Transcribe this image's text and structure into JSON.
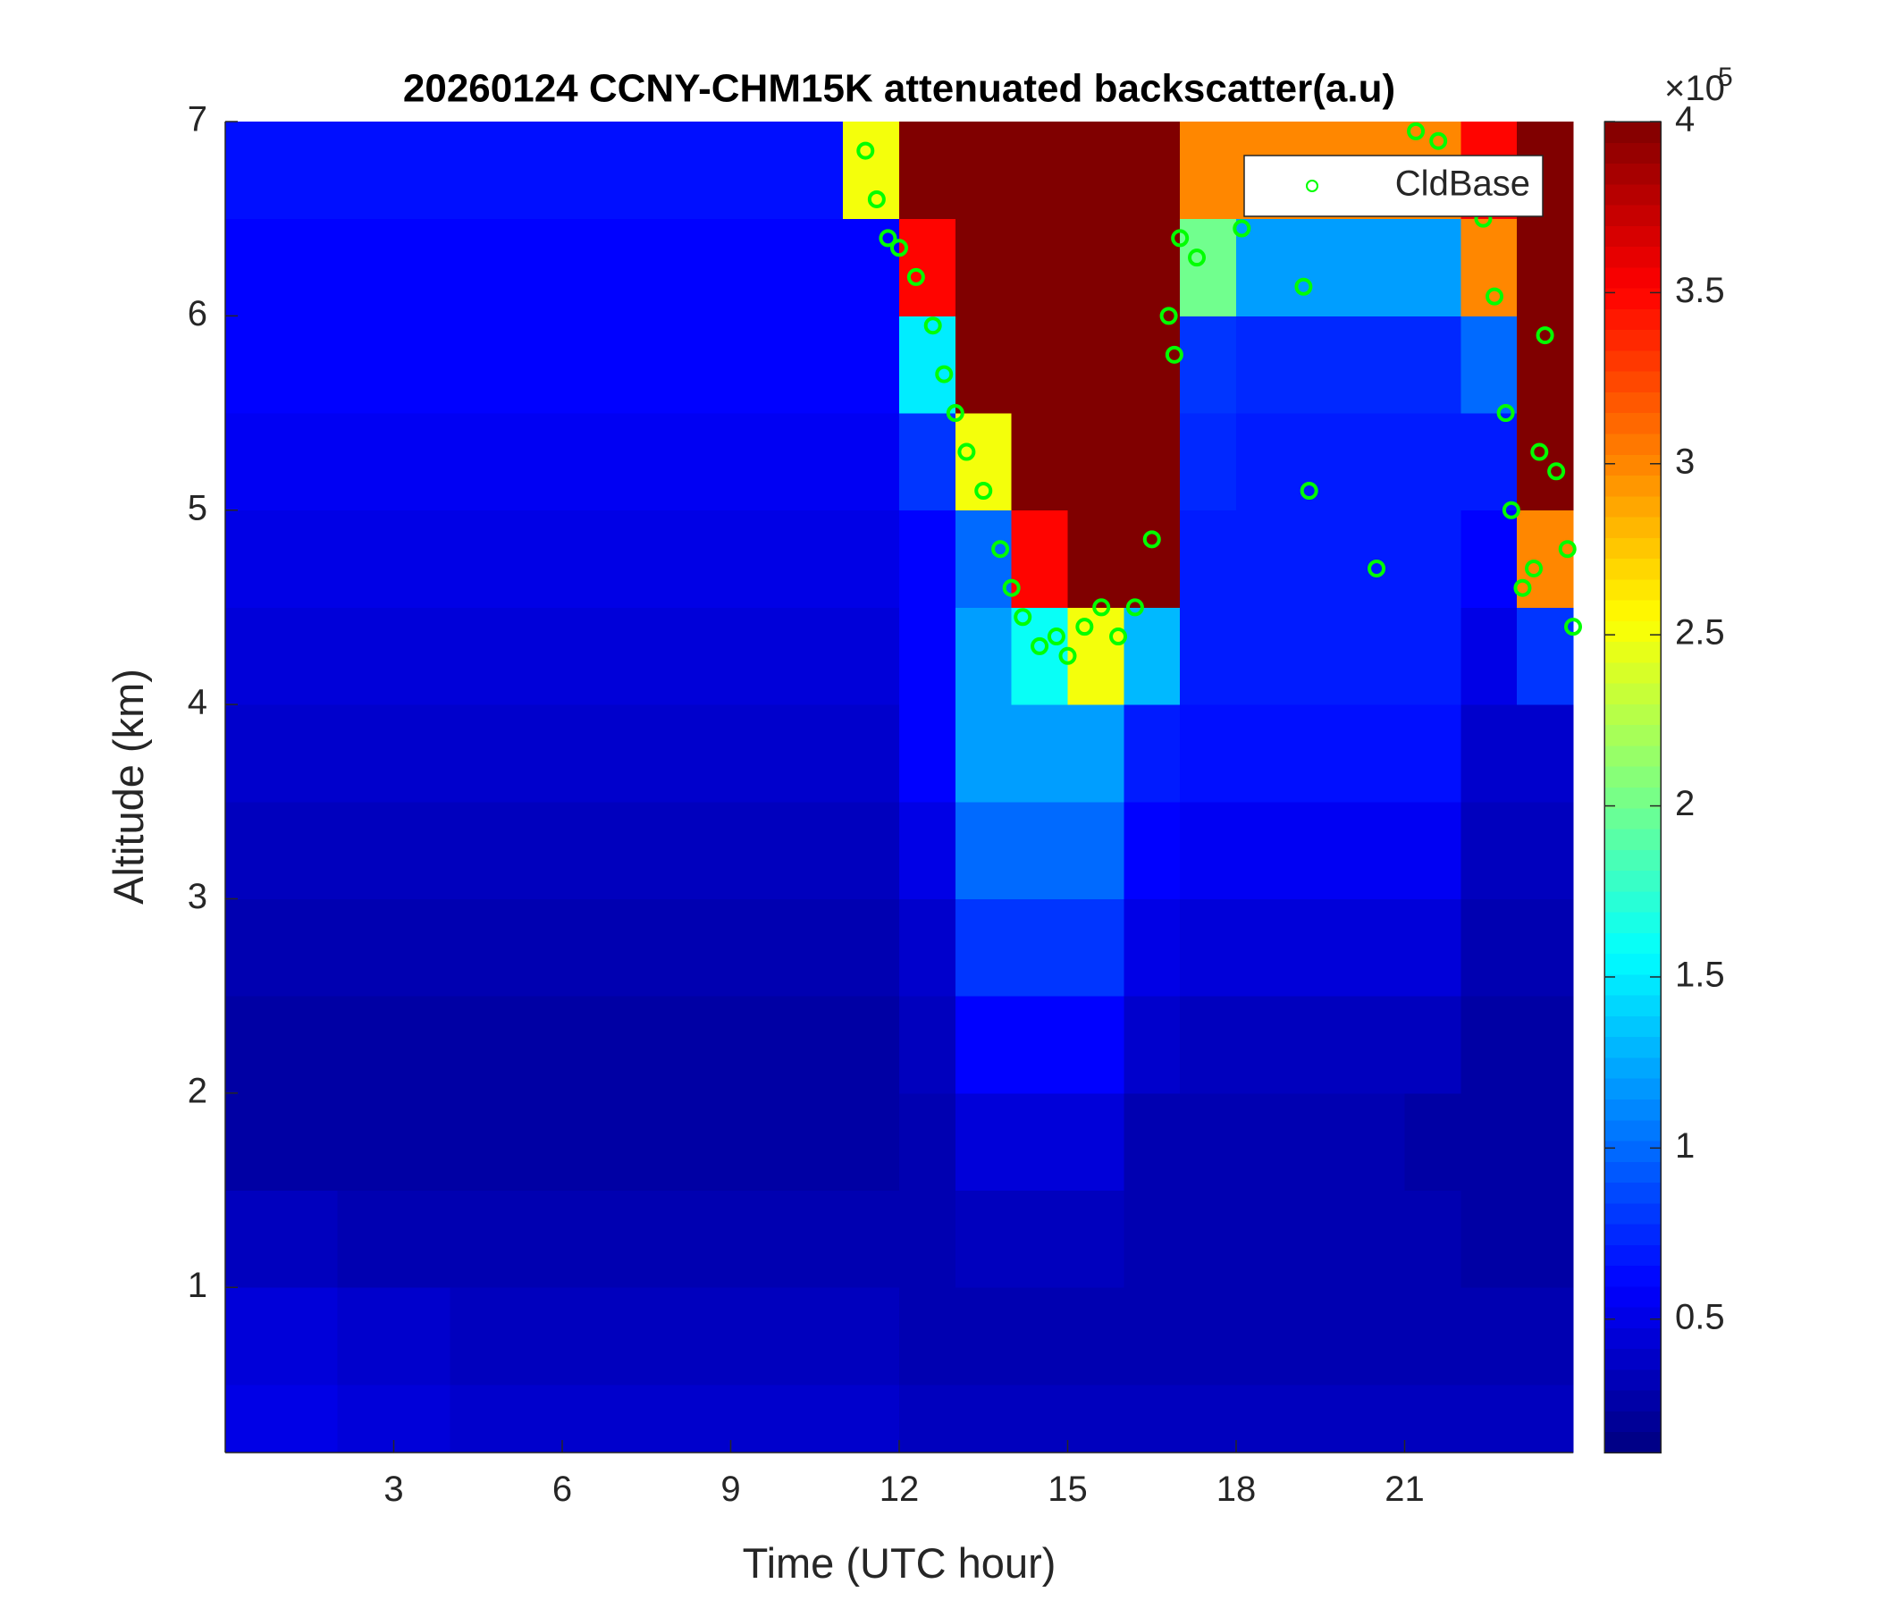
{
  "chart_data": {
    "type": "heatmap",
    "title": "20260124 CCNY-CHM15K attenuated backscatter(a.u)",
    "x_label": "Time (UTC hour)",
    "y_label": "Altitude (km)",
    "xlim": [
      0,
      24
    ],
    "ylim": [
      0.15,
      7
    ],
    "xticks": [
      3,
      6,
      9,
      12,
      15,
      18,
      21
    ],
    "yticks": [
      1,
      2,
      3,
      4,
      5,
      6,
      7
    ],
    "colormap": "jet",
    "clim": [
      0.11,
      4
    ],
    "cticks": [
      0.5,
      1,
      1.5,
      2,
      2.5,
      3,
      3.5,
      4
    ],
    "colorbar_multiplier": {
      "base": "×10",
      "exponent": "5"
    },
    "x_edges": [
      0,
      1,
      2,
      3,
      4,
      5,
      6,
      7,
      8,
      9,
      10,
      11,
      12,
      13,
      14,
      15,
      16,
      17,
      18,
      19,
      20,
      21,
      22,
      23,
      24
    ],
    "y_edges": [
      0.15,
      0.5,
      1,
      1.5,
      2,
      2.5,
      3,
      3.5,
      4,
      4.5,
      5,
      5.5,
      6,
      6.5,
      7
    ],
    "z": [
      [
        0.5,
        0.5,
        0.45,
        0.45,
        0.4,
        0.4,
        0.4,
        0.4,
        0.4,
        0.4,
        0.4,
        0.4,
        0.35,
        0.35,
        0.35,
        0.35,
        0.35,
        0.35,
        0.35,
        0.35,
        0.35,
        0.35,
        0.35,
        0.35
      ],
      [
        0.45,
        0.45,
        0.4,
        0.4,
        0.35,
        0.35,
        0.35,
        0.35,
        0.35,
        0.35,
        0.35,
        0.35,
        0.3,
        0.3,
        0.3,
        0.3,
        0.3,
        0.3,
        0.3,
        0.3,
        0.3,
        0.3,
        0.3,
        0.3
      ],
      [
        0.35,
        0.35,
        0.3,
        0.3,
        0.3,
        0.3,
        0.3,
        0.3,
        0.3,
        0.3,
        0.3,
        0.3,
        0.3,
        0.35,
        0.35,
        0.35,
        0.3,
        0.3,
        0.3,
        0.3,
        0.3,
        0.3,
        0.25,
        0.25
      ],
      [
        0.25,
        0.25,
        0.25,
        0.25,
        0.25,
        0.25,
        0.25,
        0.25,
        0.25,
        0.25,
        0.25,
        0.25,
        0.3,
        0.45,
        0.45,
        0.45,
        0.3,
        0.3,
        0.3,
        0.3,
        0.3,
        0.25,
        0.25,
        0.25
      ],
      [
        0.25,
        0.25,
        0.25,
        0.25,
        0.25,
        0.25,
        0.25,
        0.25,
        0.25,
        0.25,
        0.25,
        0.25,
        0.35,
        0.6,
        0.6,
        0.6,
        0.4,
        0.35,
        0.35,
        0.35,
        0.35,
        0.35,
        0.25,
        0.25
      ],
      [
        0.3,
        0.3,
        0.3,
        0.3,
        0.3,
        0.3,
        0.3,
        0.3,
        0.3,
        0.3,
        0.3,
        0.3,
        0.4,
        0.8,
        0.8,
        0.8,
        0.5,
        0.45,
        0.45,
        0.45,
        0.45,
        0.45,
        0.3,
        0.3
      ],
      [
        0.35,
        0.35,
        0.35,
        0.35,
        0.35,
        0.35,
        0.35,
        0.35,
        0.35,
        0.35,
        0.35,
        0.35,
        0.5,
        1,
        1,
        1,
        0.6,
        0.55,
        0.55,
        0.55,
        0.55,
        0.55,
        0.35,
        0.35
      ],
      [
        0.4,
        0.4,
        0.4,
        0.4,
        0.4,
        0.4,
        0.4,
        0.4,
        0.4,
        0.4,
        0.4,
        0.4,
        0.6,
        1.2,
        1.2,
        1.2,
        0.7,
        0.65,
        0.65,
        0.65,
        0.65,
        0.65,
        0.4,
        0.4
      ],
      [
        0.45,
        0.45,
        0.45,
        0.45,
        0.45,
        0.45,
        0.45,
        0.45,
        0.45,
        0.45,
        0.45,
        0.45,
        0.6,
        1.2,
        1.6,
        2.5,
        1.3,
        0.7,
        0.7,
        0.7,
        0.7,
        0.7,
        0.5,
        0.8
      ],
      [
        0.5,
        0.5,
        0.5,
        0.5,
        0.5,
        0.5,
        0.5,
        0.5,
        0.5,
        0.5,
        0.5,
        0.5,
        0.6,
        1,
        3.5,
        4,
        4,
        0.7,
        0.7,
        0.7,
        0.7,
        0.7,
        0.6,
        3
      ],
      [
        0.55,
        0.55,
        0.55,
        0.55,
        0.55,
        0.55,
        0.55,
        0.55,
        0.55,
        0.55,
        0.55,
        0.55,
        0.8,
        2.5,
        4,
        4,
        4,
        0.75,
        0.7,
        0.7,
        0.7,
        0.7,
        0.7,
        4
      ],
      [
        0.6,
        0.6,
        0.6,
        0.6,
        0.6,
        0.6,
        0.6,
        0.6,
        0.6,
        0.6,
        0.6,
        0.6,
        1.5,
        4,
        4,
        4,
        4,
        0.8,
        0.75,
        0.75,
        0.75,
        0.75,
        1,
        4
      ],
      [
        0.6,
        0.6,
        0.6,
        0.6,
        0.6,
        0.6,
        0.6,
        0.6,
        0.6,
        0.6,
        0.6,
        0.6,
        3.5,
        4,
        4,
        4,
        4,
        2,
        1.2,
        1.2,
        1.2,
        1.2,
        3,
        4
      ],
      [
        0.65,
        0.65,
        0.65,
        0.65,
        0.65,
        0.65,
        0.65,
        0.65,
        0.65,
        0.65,
        0.65,
        2.5,
        4,
        4,
        4,
        4,
        4,
        3,
        3,
        3,
        3,
        3,
        3.5,
        4
      ]
    ],
    "legend": "northeast",
    "series": [
      {
        "name": "CldBase",
        "color": "#00ff00",
        "x": [
          11.4,
          11.6,
          11.8,
          12,
          12.3,
          12.6,
          12.8,
          13,
          13.2,
          13.5,
          13.8,
          14,
          14.2,
          14.5,
          14.8,
          15,
          15.3,
          15.6,
          15.9,
          16.2,
          16.5,
          16.8,
          16.9,
          17,
          17.3,
          18.1,
          19.2,
          19.3,
          20.5,
          21.2,
          21.6,
          22.4,
          22.6,
          22.8,
          22.9,
          23.1,
          23.3,
          23.4,
          23.5,
          23.7,
          23.9,
          24
        ],
        "y": [
          6.85,
          6.6,
          6.4,
          6.35,
          6.2,
          5.95,
          5.7,
          5.5,
          5.3,
          5.1,
          4.8,
          4.6,
          4.45,
          4.3,
          4.35,
          4.25,
          4.4,
          4.5,
          4.35,
          4.5,
          4.85,
          6,
          5.8,
          6.4,
          6.3,
          6.45,
          6.15,
          5.1,
          4.7,
          6.95,
          6.9,
          6.5,
          6.1,
          5.5,
          5,
          4.6,
          4.7,
          5.3,
          5.9,
          5.2,
          4.8,
          4.4
        ]
      }
    ]
  }
}
